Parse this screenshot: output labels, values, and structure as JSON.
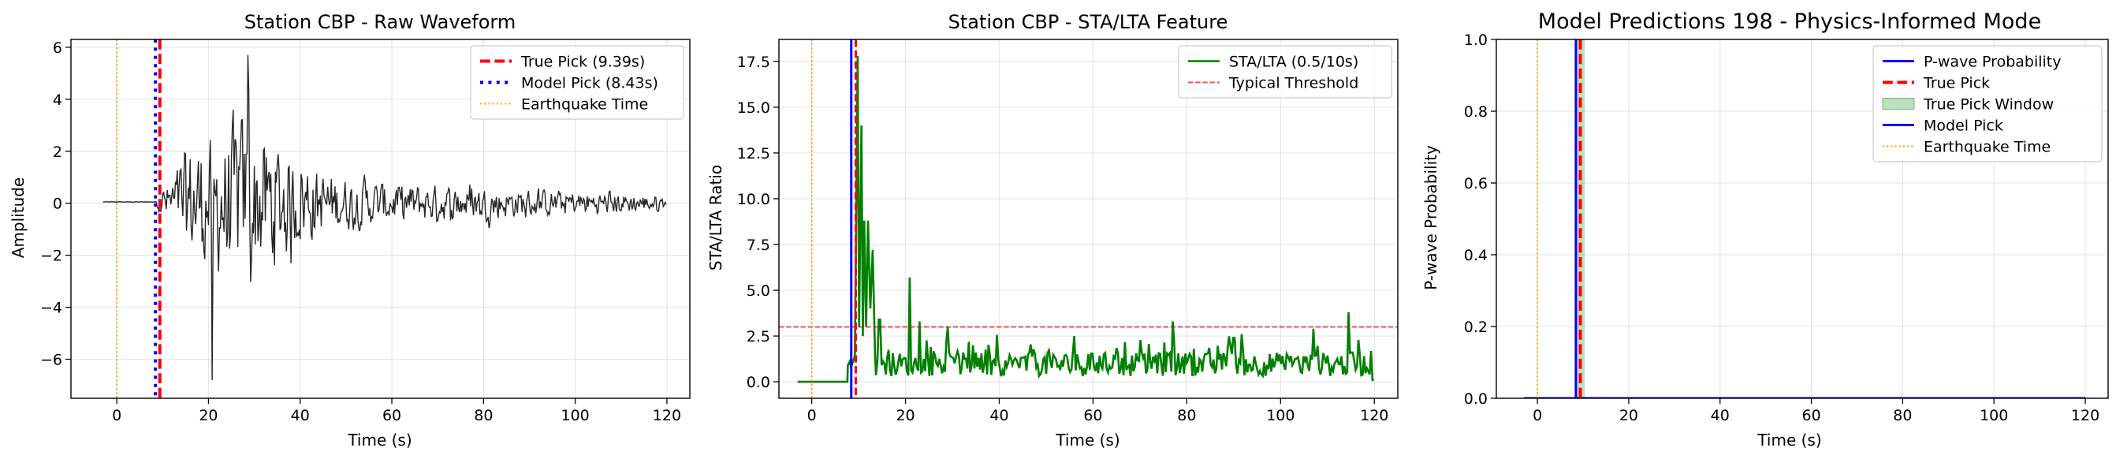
{
  "chart_data": [
    {
      "type": "line",
      "title": "Station CBP - Raw Waveform",
      "xlabel": "Time (s)",
      "ylabel": "Amplitude",
      "xlim": [
        -10,
        125
      ],
      "ylim": [
        -7.5,
        6.3
      ],
      "xticks": [
        0,
        20,
        40,
        60,
        80,
        100,
        120
      ],
      "yticks": [
        -6,
        -4,
        -2,
        0,
        2,
        4,
        6
      ],
      "xtick_labels": [
        "0",
        "20",
        "40",
        "60",
        "80",
        "100",
        "120"
      ],
      "ytick_labels": [
        "−6",
        "−4",
        "−2",
        "0",
        "2",
        "4",
        "6"
      ],
      "grid": true,
      "legend_position": "top-right",
      "vlines": [
        {
          "name": "True Pick (9.39s)",
          "x": 9.39,
          "color": "#ff0000",
          "style": "dashed",
          "width": 4
        },
        {
          "name": "Model Pick (8.43s)",
          "x": 8.43,
          "color": "#0000ff",
          "style": "dotted",
          "width": 4
        },
        {
          "name": "Earthquake Time",
          "x": 0,
          "color": "#ffa500",
          "style": "dotted",
          "width": 2
        }
      ],
      "series": [
        {
          "color": "#000000",
          "kind": "waveform",
          "x": [
            -3,
            -1,
            1,
            3,
            5,
            7,
            8,
            9,
            10,
            12,
            14,
            16,
            18,
            20,
            21,
            22,
            25,
            28,
            29,
            30,
            33,
            36,
            40,
            45,
            50,
            55,
            60,
            70,
            80,
            90,
            100,
            110,
            118,
            120
          ],
          "envelope": [
            0.02,
            0.05,
            0.08,
            0.08,
            0.08,
            0.08,
            0.1,
            0.3,
            0.8,
            1.2,
            2.2,
            3.0,
            3.2,
            3.0,
            3.4,
            3.5,
            4.0,
            4.2,
            5.7,
            3.5,
            3.6,
            3.0,
            2.0,
            1.6,
            1.3,
            1.1,
            1.0,
            0.9,
            0.8,
            0.7,
            0.6,
            0.55,
            0.4,
            0.2
          ]
        }
      ]
    },
    {
      "type": "line",
      "title": "Station CBP - STA/LTA Feature",
      "xlabel": "Time (s)",
      "ylabel": "STA/LTA Ratio",
      "xlim": [
        -7,
        125
      ],
      "ylim": [
        -0.9,
        18.7
      ],
      "xticks": [
        0,
        20,
        40,
        60,
        80,
        100,
        120
      ],
      "yticks": [
        0.0,
        2.5,
        5.0,
        7.5,
        10.0,
        12.5,
        15.0,
        17.5
      ],
      "xtick_labels": [
        "0",
        "20",
        "40",
        "60",
        "80",
        "100",
        "120"
      ],
      "ytick_labels": [
        "0.0",
        "2.5",
        "5.0",
        "7.5",
        "10.0",
        "12.5",
        "15.0",
        "17.5"
      ],
      "grid": true,
      "legend_position": "top-right",
      "hlines": [
        {
          "name": "Typical Threshold",
          "y": 3.0,
          "color": "#ff0000",
          "style": "dashed",
          "width": 2,
          "alpha": 0.7
        }
      ],
      "vlines": [
        {
          "x": 8.43,
          "color": "#0000ff",
          "style": "solid",
          "width": 3
        },
        {
          "x": 9.39,
          "color": "#ff0000",
          "style": "dashed",
          "width": 3
        },
        {
          "x": 0,
          "color": "#ffa500",
          "style": "dotted",
          "width": 2
        }
      ],
      "series": [
        {
          "name": "STA/LTA (0.5/10s)",
          "color": "#008000",
          "kind": "ratio",
          "peaks": [
            {
              "x": 8.0,
              "y": 1.1
            },
            {
              "x": 9.8,
              "y": 17.8
            },
            {
              "x": 10.6,
              "y": 14.0
            },
            {
              "x": 11.2,
              "y": 8.8
            },
            {
              "x": 12.0,
              "y": 8.8
            },
            {
              "x": 13.0,
              "y": 7.2
            },
            {
              "x": 14.5,
              "y": 3.4
            },
            {
              "x": 21.0,
              "y": 5.7
            },
            {
              "x": 23.0,
              "y": 3.3
            },
            {
              "x": 29.0,
              "y": 3.0
            },
            {
              "x": 56.0,
              "y": 2.5
            },
            {
              "x": 77.0,
              "y": 3.3
            },
            {
              "x": 90.0,
              "y": 2.4
            },
            {
              "x": 107.0,
              "y": 2.9
            },
            {
              "x": 114.5,
              "y": 3.8
            },
            {
              "x": 120.0,
              "y": 0.1
            }
          ]
        }
      ]
    },
    {
      "type": "line",
      "title": "Model Predictions 198 - Physics-Informed Mode",
      "xlabel": "Time (s)",
      "ylabel": "P-wave Probability",
      "xlim": [
        -9,
        125
      ],
      "ylim": [
        0,
        1.0
      ],
      "xticks": [
        0,
        20,
        40,
        60,
        80,
        100,
        120
      ],
      "yticks": [
        0.0,
        0.2,
        0.4,
        0.6,
        0.8,
        1.0
      ],
      "xtick_labels": [
        "0",
        "20",
        "40",
        "60",
        "80",
        "100",
        "120"
      ],
      "ytick_labels": [
        "0.0",
        "0.2",
        "0.4",
        "0.6",
        "0.8",
        "1.0"
      ],
      "grid": true,
      "legend_position": "top-right",
      "spans": [
        {
          "name": "True Pick Window",
          "x0": 8.39,
          "x1": 10.39,
          "color": "#008000",
          "alpha": 0.25
        }
      ],
      "vlines": [
        {
          "name": "True Pick",
          "x": 9.39,
          "color": "#ff0000",
          "style": "dashed",
          "width": 4
        },
        {
          "name": "Model Pick",
          "x": 8.43,
          "color": "#0000ff",
          "style": "solid",
          "width": 3
        },
        {
          "name": "Earthquake Time",
          "x": 0,
          "color": "#ffa500",
          "style": "dotted",
          "width": 2
        }
      ],
      "series": [
        {
          "name": "P-wave Probability",
          "color": "#0000ff",
          "x": [
            -3,
            8.4,
            8.5,
            120
          ],
          "y": [
            0.0,
            0.0,
            0.0,
            0.0
          ]
        }
      ],
      "legend_order": [
        "P-wave Probability",
        "True Pick",
        "True Pick Window",
        "Model Pick",
        "Earthquake Time"
      ]
    }
  ]
}
